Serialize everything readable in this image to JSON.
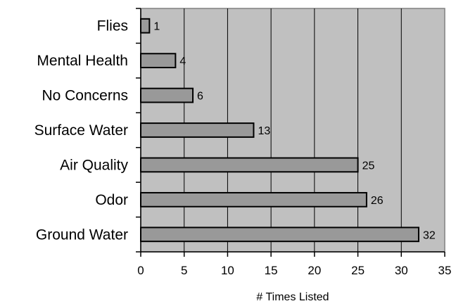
{
  "chart_data": {
    "type": "bar",
    "orientation": "horizontal",
    "categories": [
      "Flies",
      "Mental Health",
      "No Concerns",
      "Surface Water",
      "Air Quality",
      "Odor",
      "Ground Water"
    ],
    "values": [
      1,
      4,
      6,
      13,
      25,
      26,
      32
    ],
    "xlabel": "# Times Listed",
    "ylabel": "",
    "xlim": [
      0,
      35
    ],
    "xticks": [
      "0",
      "5",
      "10",
      "15",
      "20",
      "25",
      "30",
      "35"
    ],
    "grid": "vertical",
    "legend": "none",
    "colors": {
      "plot_bg": "#c0c0c0",
      "bar_fill": "#999999",
      "bar_stroke": "#000000",
      "grid": "#000000"
    }
  }
}
